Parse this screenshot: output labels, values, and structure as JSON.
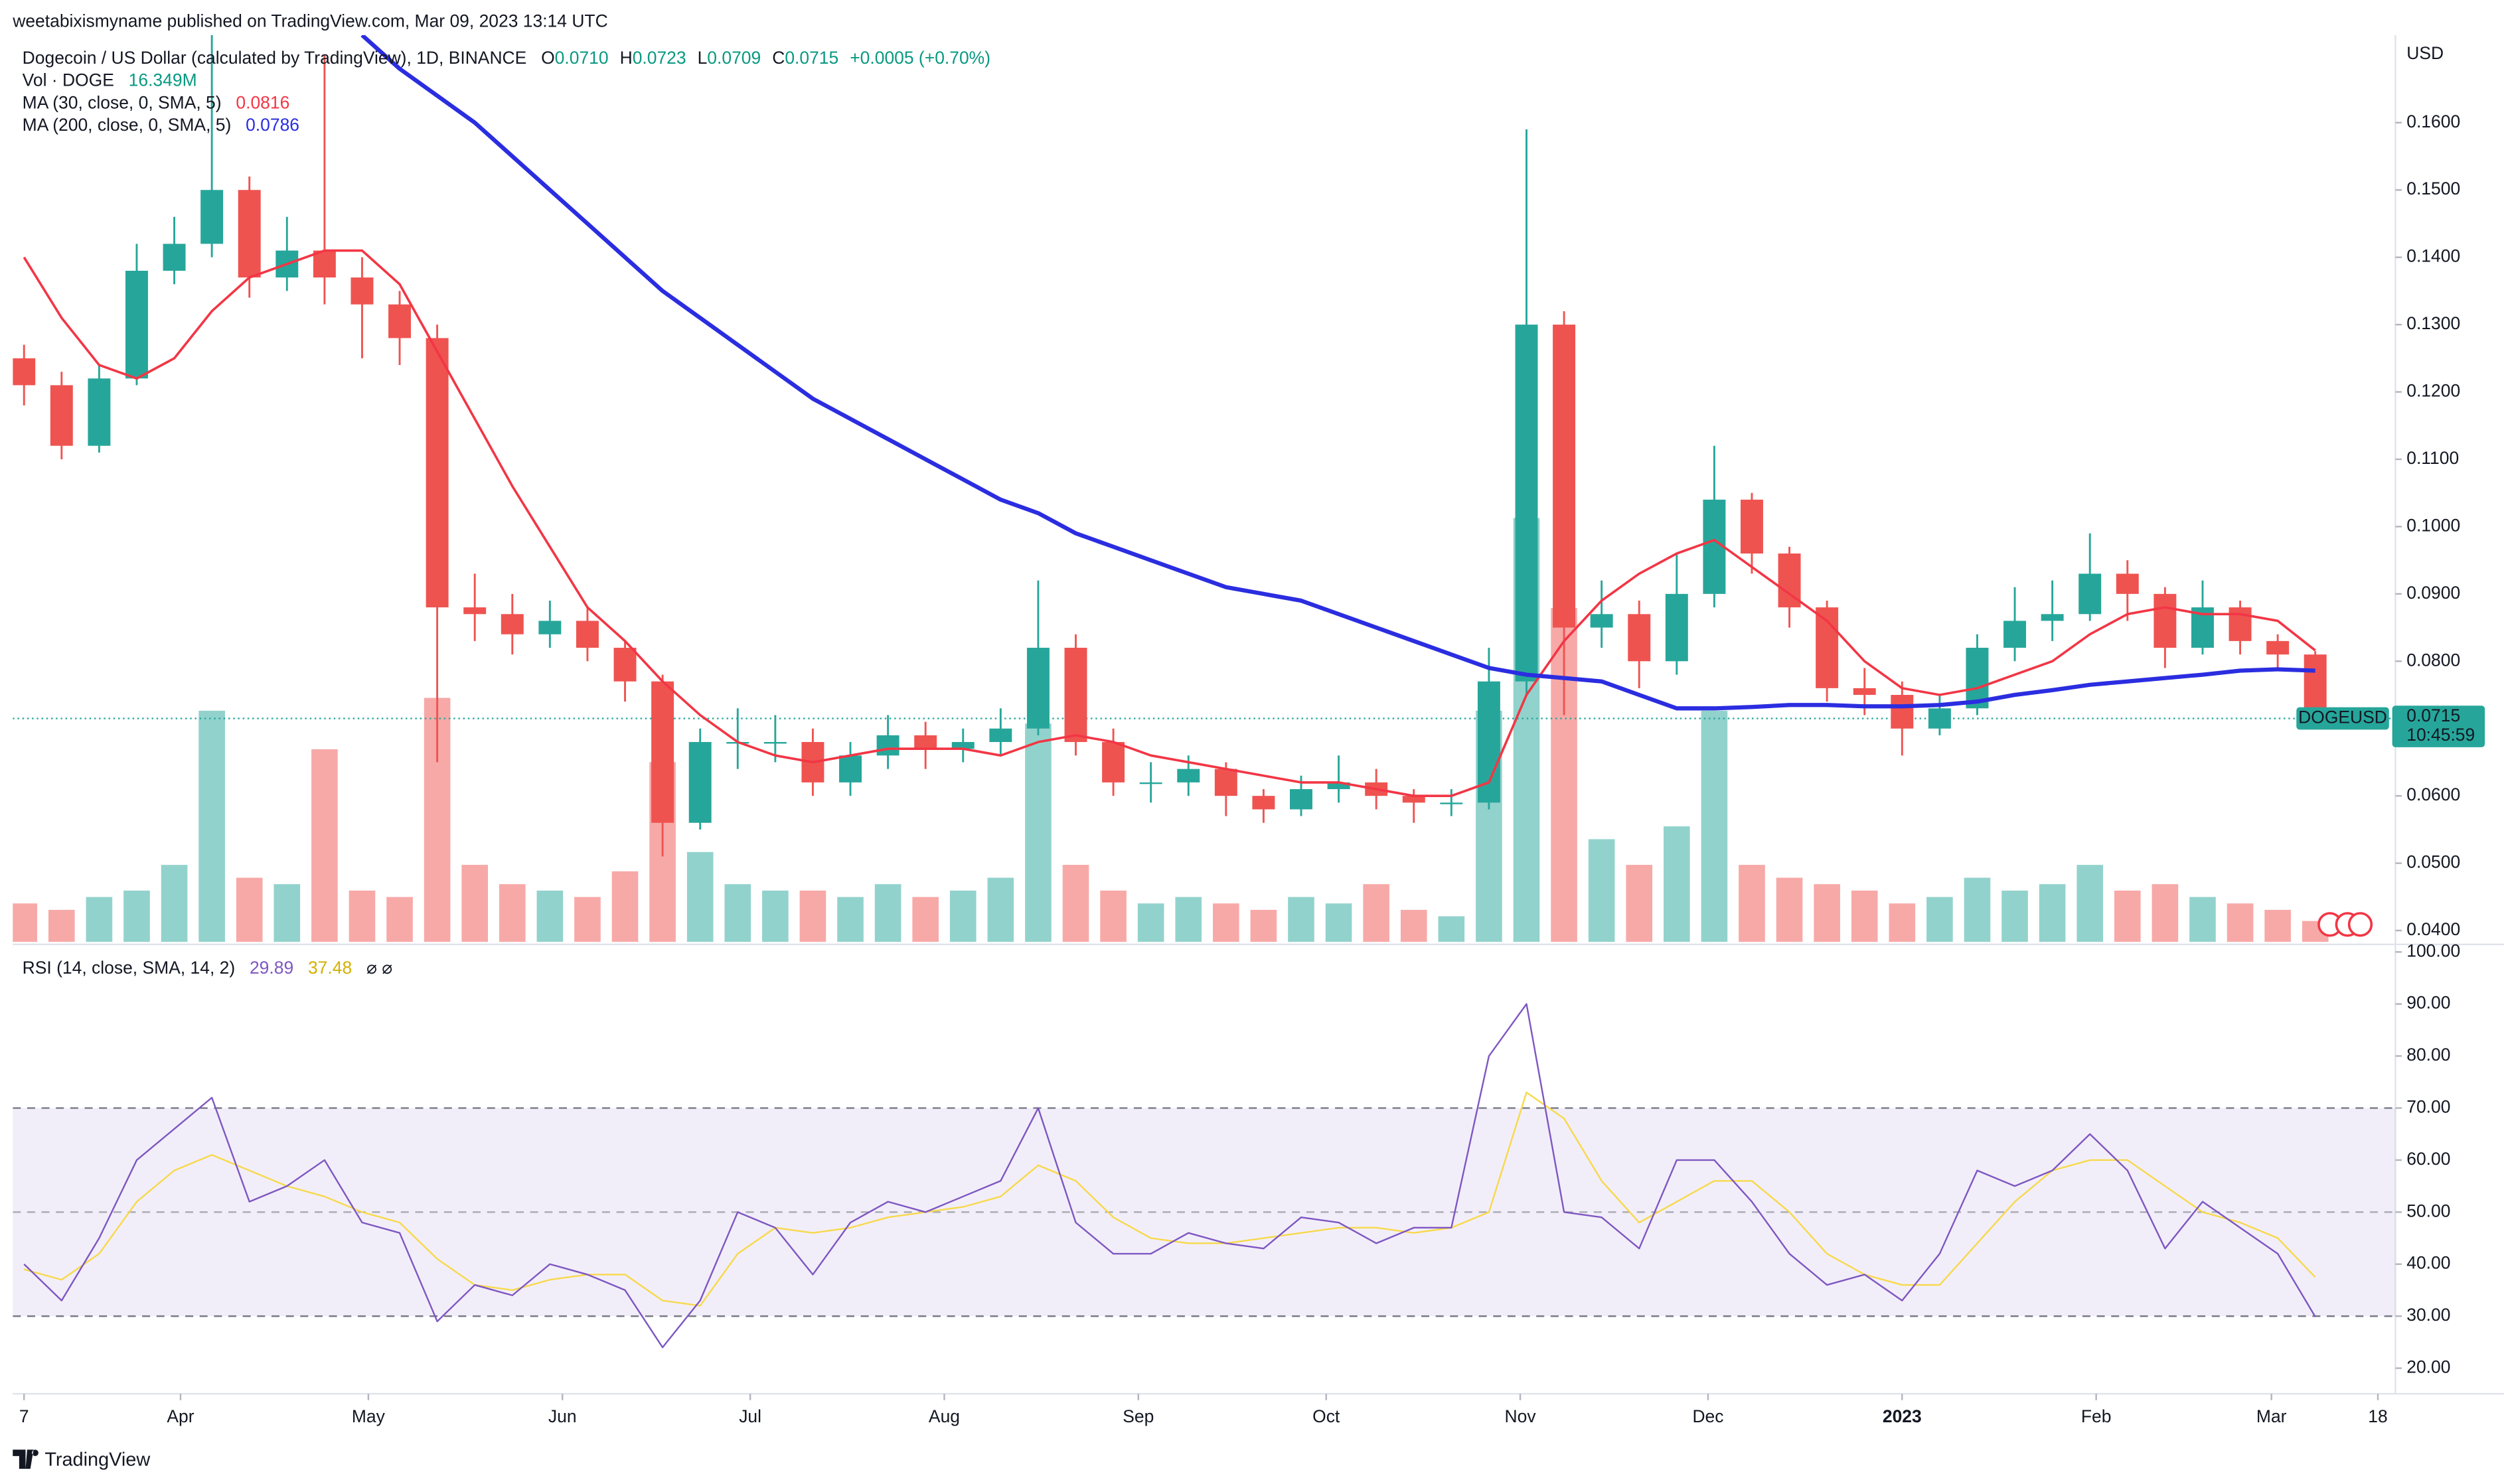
{
  "header": {
    "publisher": "weetabixismyname published on TradingView.com, Mar 09, 2023 13:14 UTC"
  },
  "chart_data": {
    "type": "candlestick",
    "title": "Dogecoin / US Dollar (calculated by TradingView), 1D, BINANCE",
    "ohlc_legend": [
      {
        "label": "O",
        "value": "0.0710"
      },
      {
        "label": "H",
        "value": "0.0723"
      },
      {
        "label": "L",
        "value": "0.0709"
      },
      {
        "label": "C",
        "value": "0.0715"
      }
    ],
    "change": "+0.0005 (+0.70%)",
    "y_unit": "USD",
    "up_color": "#26a69a",
    "down_color": "#ef5350",
    "x": [
      0,
      6,
      12,
      18,
      24,
      30,
      36,
      42,
      48,
      54,
      60,
      66,
      72,
      78,
      84,
      90,
      96,
      102,
      108,
      114,
      120,
      126,
      132,
      138,
      144,
      150,
      156,
      162,
      168,
      174,
      180,
      186,
      192,
      198,
      204,
      210,
      216,
      222,
      228,
      234,
      240,
      246,
      252,
      258,
      264,
      270,
      276,
      282,
      288,
      294,
      300,
      306,
      312,
      318,
      324,
      330,
      336,
      342,
      348,
      354,
      360,
      366
    ],
    "xlim": [
      -1.8,
      378.8
    ],
    "xticks": [
      {
        "value": 0,
        "label": "7"
      },
      {
        "value": 25,
        "label": "Apr"
      },
      {
        "value": 55,
        "label": "May"
      },
      {
        "value": 86,
        "label": "Jun"
      },
      {
        "value": 116,
        "label": "Jul"
      },
      {
        "value": 147,
        "label": "Aug"
      },
      {
        "value": 178,
        "label": "Sep"
      },
      {
        "value": 208,
        "label": "Oct"
      },
      {
        "value": 239,
        "label": "Nov"
      },
      {
        "value": 269,
        "label": "Dec"
      },
      {
        "value": 300,
        "label": "2023"
      },
      {
        "value": 331,
        "label": "Feb"
      },
      {
        "value": 359,
        "label": "Mar"
      },
      {
        "value": 376,
        "label": "18"
      }
    ],
    "ylim": [
      0.0383,
      0.173
    ],
    "yticks": [
      {
        "value": 0.04,
        "label": "0.0400"
      },
      {
        "value": 0.05,
        "label": "0.0500"
      },
      {
        "value": 0.06,
        "label": "0.0600"
      },
      {
        "value": 0.07,
        "label": "0.0700"
      },
      {
        "value": 0.08,
        "label": "0.0800"
      },
      {
        "value": 0.09,
        "label": "0.0900"
      },
      {
        "value": 0.1,
        "label": "0.1000"
      },
      {
        "value": 0.11,
        "label": "0.1100"
      },
      {
        "value": 0.12,
        "label": "0.1200"
      },
      {
        "value": 0.13,
        "label": "0.1300"
      },
      {
        "value": 0.14,
        "label": "0.1400"
      },
      {
        "value": 0.15,
        "label": "0.1500"
      },
      {
        "value": 0.16,
        "label": "0.1600"
      }
    ],
    "grid": false,
    "open": [
      0.125,
      0.121,
      0.112,
      0.122,
      0.138,
      0.142,
      0.15,
      0.137,
      0.141,
      0.137,
      0.133,
      0.128,
      0.088,
      0.087,
      0.084,
      0.086,
      0.082,
      0.077,
      0.056,
      0.068,
      0.068,
      0.068,
      0.062,
      0.066,
      0.069,
      0.067,
      0.068,
      0.07,
      0.082,
      0.068,
      0.062,
      0.062,
      0.064,
      0.06,
      0.058,
      0.061,
      0.062,
      0.06,
      0.059,
      0.059,
      0.077,
      0.13,
      0.085,
      0.087,
      0.08,
      0.09,
      0.104,
      0.096,
      0.088,
      0.076,
      0.075,
      0.07,
      0.073,
      0.082,
      0.086,
      0.087,
      0.093,
      0.09,
      0.082,
      0.088,
      0.083,
      0.081
    ],
    "high": [
      0.127,
      0.123,
      0.124,
      0.142,
      0.146,
      0.173,
      0.152,
      0.146,
      0.17,
      0.14,
      0.135,
      0.13,
      0.093,
      0.09,
      0.089,
      0.088,
      0.083,
      0.078,
      0.07,
      0.073,
      0.072,
      0.07,
      0.068,
      0.072,
      0.071,
      0.07,
      0.073,
      0.092,
      0.084,
      0.07,
      0.065,
      0.066,
      0.065,
      0.061,
      0.063,
      0.066,
      0.064,
      0.061,
      0.061,
      0.082,
      0.159,
      0.132,
      0.092,
      0.089,
      0.096,
      0.112,
      0.105,
      0.097,
      0.089,
      0.079,
      0.077,
      0.075,
      0.084,
      0.091,
      0.092,
      0.099,
      0.095,
      0.091,
      0.092,
      0.089,
      0.084,
      0.0815
    ],
    "low": [
      0.118,
      0.11,
      0.111,
      0.121,
      0.136,
      0.14,
      0.134,
      0.135,
      0.133,
      0.125,
      0.124,
      0.065,
      0.083,
      0.081,
      0.082,
      0.08,
      0.074,
      0.051,
      0.055,
      0.064,
      0.065,
      0.06,
      0.06,
      0.064,
      0.064,
      0.065,
      0.066,
      0.069,
      0.066,
      0.06,
      0.059,
      0.06,
      0.057,
      0.056,
      0.057,
      0.059,
      0.058,
      0.056,
      0.057,
      0.058,
      0.075,
      0.072,
      0.082,
      0.076,
      0.078,
      0.088,
      0.093,
      0.085,
      0.074,
      0.072,
      0.066,
      0.069,
      0.072,
      0.08,
      0.083,
      0.086,
      0.086,
      0.079,
      0.081,
      0.081,
      0.079,
      0.0709
    ],
    "close": [
      0.121,
      0.112,
      0.122,
      0.138,
      0.142,
      0.15,
      0.137,
      0.141,
      0.137,
      0.133,
      0.128,
      0.088,
      0.087,
      0.084,
      0.086,
      0.082,
      0.077,
      0.056,
      0.068,
      0.068,
      0.068,
      0.062,
      0.066,
      0.069,
      0.067,
      0.068,
      0.07,
      0.082,
      0.068,
      0.062,
      0.062,
      0.064,
      0.06,
      0.058,
      0.061,
      0.062,
      0.06,
      0.059,
      0.059,
      0.077,
      0.13,
      0.085,
      0.087,
      0.08,
      0.09,
      0.104,
      0.096,
      0.088,
      0.076,
      0.075,
      0.07,
      0.073,
      0.082,
      0.086,
      0.087,
      0.093,
      0.09,
      0.082,
      0.088,
      0.083,
      0.081,
      0.0715
    ],
    "volume": {
      "name": "Vol · DOGE",
      "legend_value": "16.349M",
      "ylim": [
        0,
        600
      ],
      "values": [
        30,
        25,
        35,
        40,
        60,
        180,
        50,
        45,
        150,
        40,
        35,
        190,
        60,
        45,
        40,
        35,
        55,
        140,
        70,
        45,
        40,
        40,
        35,
        45,
        35,
        40,
        50,
        170,
        60,
        40,
        30,
        35,
        30,
        25,
        35,
        30,
        45,
        25,
        20,
        180,
        330,
        260,
        80,
        60,
        90,
        180,
        60,
        50,
        45,
        40,
        30,
        35,
        50,
        40,
        45,
        60,
        40,
        45,
        35,
        30,
        25,
        16.349
      ]
    },
    "moving_averages": [
      {
        "name": "MA (30, close, 0, SMA, 5)",
        "legend_value": "0.0816",
        "color": "#f23645",
        "values": [
          0.14,
          0.131,
          0.124,
          0.122,
          0.125,
          0.132,
          0.137,
          0.139,
          0.141,
          0.141,
          0.136,
          0.126,
          0.116,
          0.106,
          0.097,
          0.088,
          0.083,
          0.077,
          0.072,
          0.068,
          0.066,
          0.065,
          0.066,
          0.067,
          0.067,
          0.067,
          0.066,
          0.068,
          0.069,
          0.068,
          0.066,
          0.065,
          0.064,
          0.063,
          0.062,
          0.062,
          0.061,
          0.06,
          0.06,
          0.062,
          0.075,
          0.083,
          0.089,
          0.093,
          0.096,
          0.098,
          0.094,
          0.09,
          0.086,
          0.08,
          0.076,
          0.075,
          0.076,
          0.078,
          0.08,
          0.084,
          0.087,
          0.088,
          0.087,
          0.087,
          0.086,
          0.0816
        ]
      },
      {
        "name": "MA (200, close, 0, SMA, 5)",
        "legend_value": "0.0786",
        "color": "#2b2de0",
        "values": [
          null,
          null,
          null,
          null,
          null,
          null,
          null,
          null,
          null,
          0.173,
          0.168,
          0.164,
          0.16,
          0.155,
          0.15,
          0.145,
          0.14,
          0.135,
          0.131,
          0.127,
          0.123,
          0.119,
          0.116,
          0.113,
          0.11,
          0.107,
          0.104,
          0.102,
          0.099,
          0.097,
          0.095,
          0.093,
          0.091,
          0.09,
          0.089,
          0.087,
          0.085,
          0.083,
          0.081,
          0.079,
          0.078,
          0.0775,
          0.077,
          0.075,
          0.073,
          0.073,
          0.0732,
          0.0735,
          0.0735,
          0.0733,
          0.0733,
          0.0735,
          0.074,
          0.075,
          0.0757,
          0.0765,
          0.077,
          0.0775,
          0.078,
          0.0786,
          0.0788,
          0.0786
        ]
      }
    ],
    "last_price": {
      "value": 0.0715,
      "label": "0.0715",
      "countdown": "10:45:59",
      "symbol": "DOGEUSD",
      "color": "#26a69a"
    },
    "rsi": {
      "type": "line",
      "name": "RSI (14, close, SMA, 14, 2)",
      "ylim": [
        16,
        101
      ],
      "yticks": [
        {
          "value": 20,
          "label": "20.00"
        },
        {
          "value": 30,
          "label": "30.00"
        },
        {
          "value": 40,
          "label": "40.00"
        },
        {
          "value": 50,
          "label": "50.00"
        },
        {
          "value": 60,
          "label": "60.00"
        },
        {
          "value": 70,
          "label": "70.00"
        },
        {
          "value": 80,
          "label": "80.00"
        },
        {
          "value": 90,
          "label": "90.00"
        },
        {
          "value": 100,
          "label": "100.00"
        }
      ],
      "bands": [
        30,
        70
      ],
      "mid": 50,
      "band_color": "#7e57c2",
      "series": [
        {
          "legend_value": "29.89",
          "color": "#7e57c2",
          "values": [
            40,
            33,
            45,
            60,
            66,
            72,
            52,
            55,
            60,
            48,
            46,
            29,
            36,
            34,
            40,
            38,
            35,
            24,
            33,
            50,
            47,
            38,
            48,
            52,
            50,
            53,
            56,
            70,
            48,
            42,
            42,
            46,
            44,
            43,
            49,
            48,
            44,
            47,
            47,
            80,
            90,
            50,
            49,
            43,
            60,
            60,
            52,
            42,
            36,
            38,
            33,
            42,
            58,
            55,
            58,
            65,
            58,
            43,
            52,
            47,
            42,
            29.89
          ]
        },
        {
          "legend_value": "37.48",
          "color": "#f7d94c",
          "values": [
            39,
            37,
            42,
            52,
            58,
            61,
            58,
            55,
            53,
            50,
            48,
            41,
            36,
            35,
            37,
            38,
            38,
            33,
            32,
            42,
            47,
            46,
            47,
            49,
            50,
            51,
            53,
            59,
            56,
            49,
            45,
            44,
            44,
            45,
            46,
            47,
            47,
            46,
            47,
            50,
            73,
            68,
            56,
            48,
            52,
            56,
            56,
            50,
            42,
            38,
            36,
            36,
            44,
            52,
            58,
            60,
            60,
            55,
            50,
            48,
            45,
            37.48
          ]
        }
      ]
    }
  },
  "footer": {
    "brand": "TradingView"
  }
}
